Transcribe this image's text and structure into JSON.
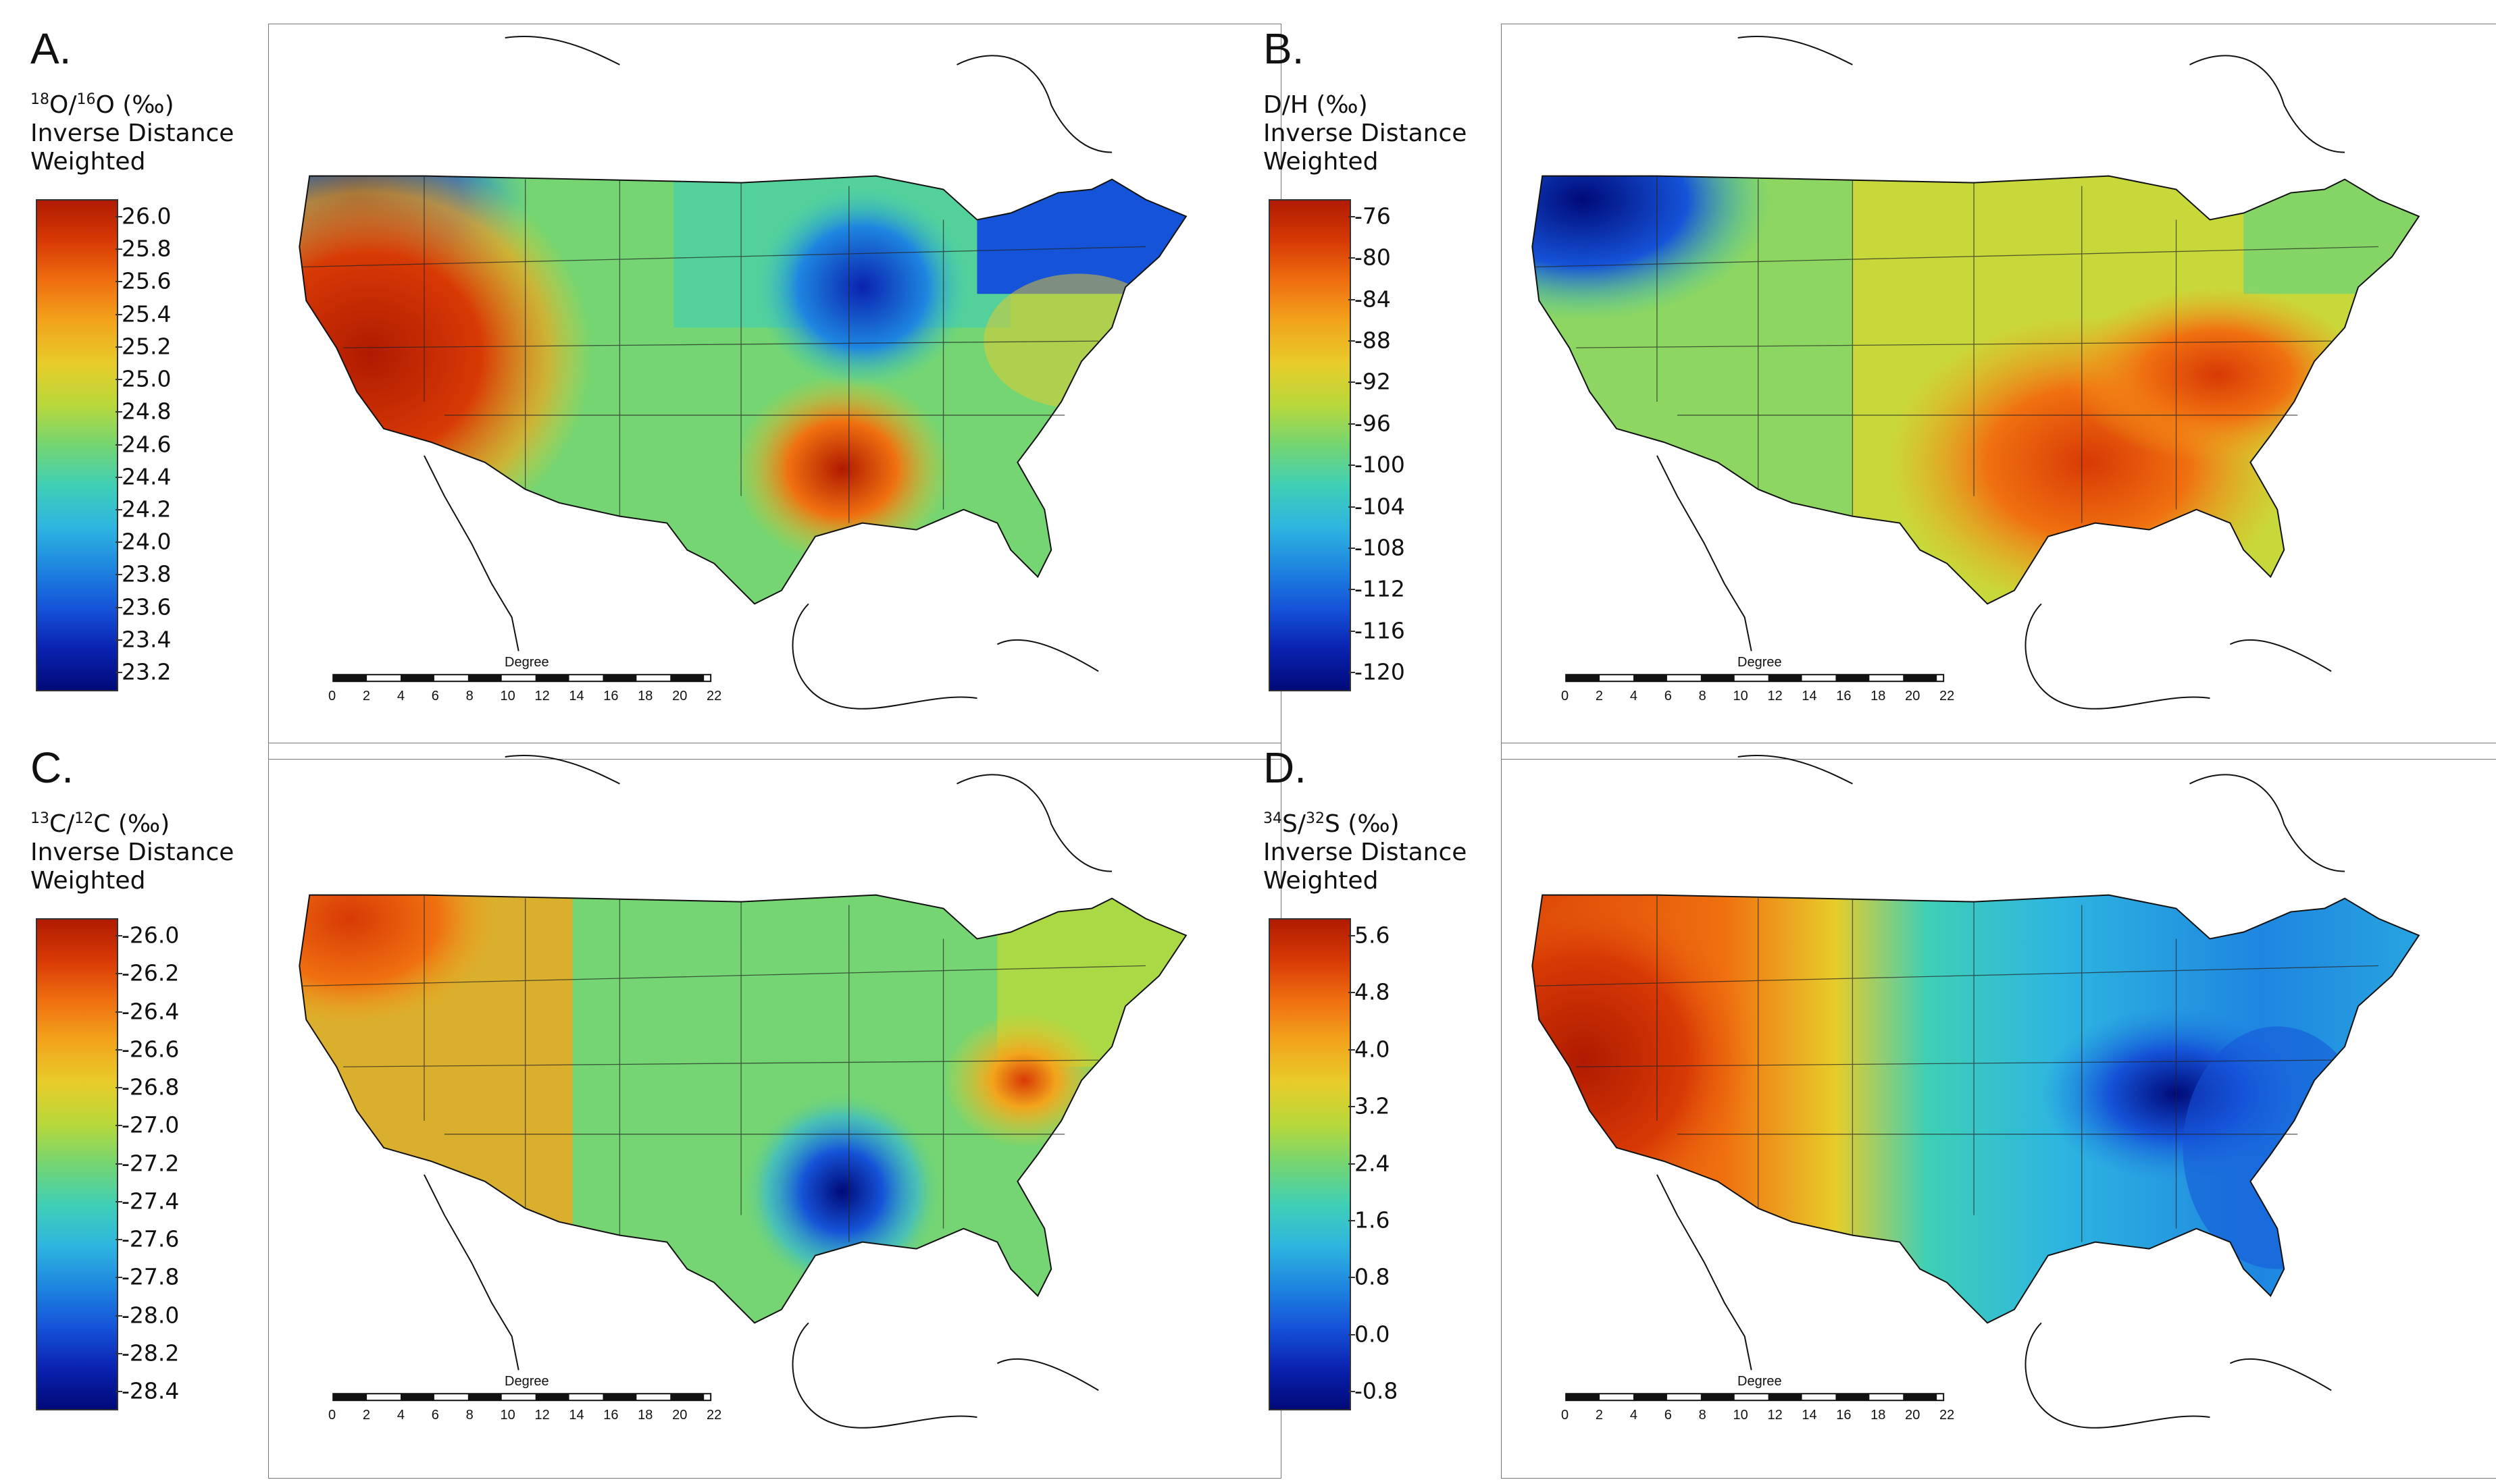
{
  "figure": {
    "panels": [
      {
        "letter": "A.",
        "iso_sup": "18",
        "iso_main": "O/",
        "iso_sup2": "16",
        "iso_rest": "O (‰)",
        "line2": "Inverse Distance",
        "line3": "Weighted",
        "ticks": [
          "26.0",
          "25.8",
          "25.6",
          "25.4",
          "25.2",
          "25.0",
          "24.8",
          "24.6",
          "24.4",
          "24.2",
          "24.0",
          "23.8",
          "23.6",
          "23.4",
          "23.2"
        ],
        "scale_title": "Degree",
        "scale_labels": [
          "0",
          "2",
          "4",
          "6",
          "8",
          "10",
          "12",
          "14",
          "16",
          "18",
          "20",
          "22"
        ]
      },
      {
        "letter": "B.",
        "iso_sup": "",
        "iso_main": "D/H (‰)",
        "iso_sup2": "",
        "iso_rest": "",
        "line2": "Inverse Distance",
        "line3": "Weighted",
        "ticks": [
          "-76",
          "-80",
          "-84",
          "-88",
          "-92",
          "-96",
          "-100",
          "-104",
          "-108",
          "-112",
          "-116",
          "-120"
        ],
        "scale_title": "Degree",
        "scale_labels": [
          "0",
          "2",
          "4",
          "6",
          "8",
          "10",
          "12",
          "14",
          "16",
          "18",
          "20",
          "22"
        ]
      },
      {
        "letter": "C.",
        "iso_sup": "13",
        "iso_main": "C/",
        "iso_sup2": "12",
        "iso_rest": "C (‰)",
        "line2": "Inverse Distance",
        "line3": "Weighted",
        "ticks": [
          "-26.0",
          "-26.2",
          "-26.4",
          "-26.6",
          "-26.8",
          "-27.0",
          "-27.2",
          "-27.4",
          "-27.6",
          "-27.8",
          "-28.0",
          "-28.2",
          "-28.4"
        ],
        "scale_title": "Degree",
        "scale_labels": [
          "0",
          "2",
          "4",
          "6",
          "8",
          "10",
          "12",
          "14",
          "16",
          "18",
          "20",
          "22"
        ]
      },
      {
        "letter": "D.",
        "iso_sup": "34",
        "iso_main": "S/",
        "iso_sup2": "32",
        "iso_rest": "S (‰)",
        "line2": "Inverse Distance",
        "line3": "Weighted",
        "ticks": [
          "5.6",
          "4.8",
          "4.0",
          "3.2",
          "2.4",
          "1.6",
          "0.8",
          "0.0",
          "-0.8"
        ],
        "scale_title": "Degree",
        "scale_labels": [
          "0",
          "2",
          "4",
          "6",
          "8",
          "10",
          "12",
          "14",
          "16",
          "18",
          "20",
          "22"
        ]
      }
    ]
  },
  "colors": {
    "ramp": [
      "#b01a00",
      "#d83a05",
      "#f07010",
      "#f2a51c",
      "#e8cc2a",
      "#b9d83a",
      "#74d572",
      "#3fcfb6",
      "#2eb5e0",
      "#1e86e0",
      "#1553d8",
      "#0a22b0",
      "#000a78"
    ]
  }
}
